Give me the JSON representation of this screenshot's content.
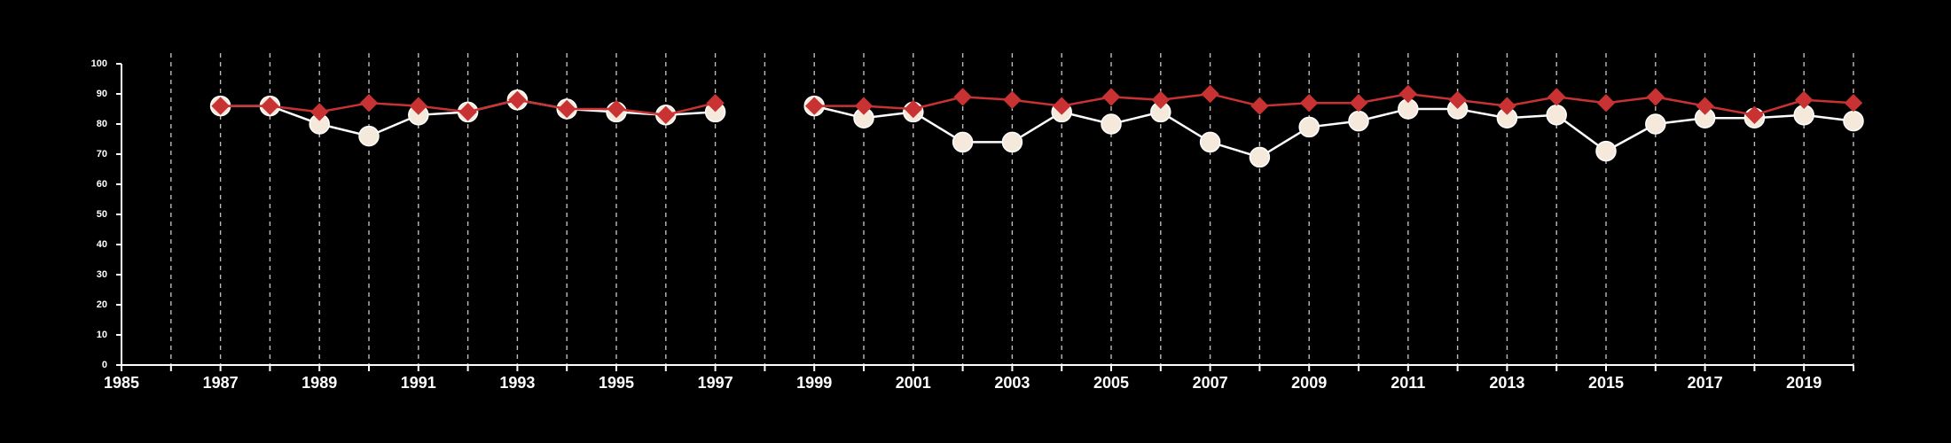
{
  "chart_data": {
    "type": "line",
    "title": "",
    "xlabel": "",
    "ylabel": "",
    "xlim": [
      1985,
      2020
    ],
    "ylim": [
      0,
      100
    ],
    "grid": {
      "x": true,
      "y": false
    },
    "x_ticks": [
      1985,
      1987,
      1989,
      1991,
      1993,
      1995,
      1997,
      1999,
      2001,
      2003,
      2005,
      2007,
      2009,
      2011,
      2013,
      2015,
      2017,
      2019
    ],
    "y_ticks": [
      0,
      10,
      20,
      30,
      40,
      50,
      60,
      70,
      80,
      90,
      100
    ],
    "x_tick_labels": [
      "1985",
      "1987",
      "1989",
      "1991",
      "1993",
      "1995",
      "1997",
      "1999",
      "2001",
      "2003",
      "2005",
      "2007",
      "2009",
      "2011",
      "2013",
      "2015",
      "2017",
      "2019"
    ],
    "y_tick_labels": [
      "0",
      "10",
      "20",
      "30",
      "40",
      "50",
      "60",
      "70",
      "80",
      "90",
      "100"
    ],
    "x": [
      1987,
      1988,
      1989,
      1990,
      1991,
      1992,
      1993,
      1994,
      1995,
      1996,
      1997,
      1998,
      1999,
      2000,
      2001,
      2002,
      2003,
      2004,
      2005,
      2006,
      2007,
      2008,
      2009,
      2010,
      2011,
      2012,
      2013,
      2014,
      2015,
      2016,
      2017,
      2018,
      2019,
      2020
    ],
    "series": [
      {
        "marker": "diamond",
        "color": "#c83232",
        "values": [
          86,
          86,
          84,
          87,
          86,
          84,
          88,
          85,
          85,
          83,
          87,
          null,
          86,
          86,
          85,
          89,
          88,
          86,
          89,
          88,
          90,
          86,
          87,
          87,
          90,
          88,
          86,
          89,
          87,
          89,
          86,
          83,
          88,
          87
        ]
      },
      {
        "marker": "circle",
        "color": "#f5e9dc",
        "line_color": "#ffffff",
        "values": [
          86,
          86,
          80,
          76,
          83,
          84,
          88,
          85,
          84,
          83,
          84,
          null,
          86,
          82,
          84,
          74,
          74,
          84,
          80,
          84,
          74,
          69,
          79,
          81,
          85,
          85,
          82,
          83,
          71,
          80,
          82,
          82,
          83,
          81
        ]
      }
    ]
  }
}
